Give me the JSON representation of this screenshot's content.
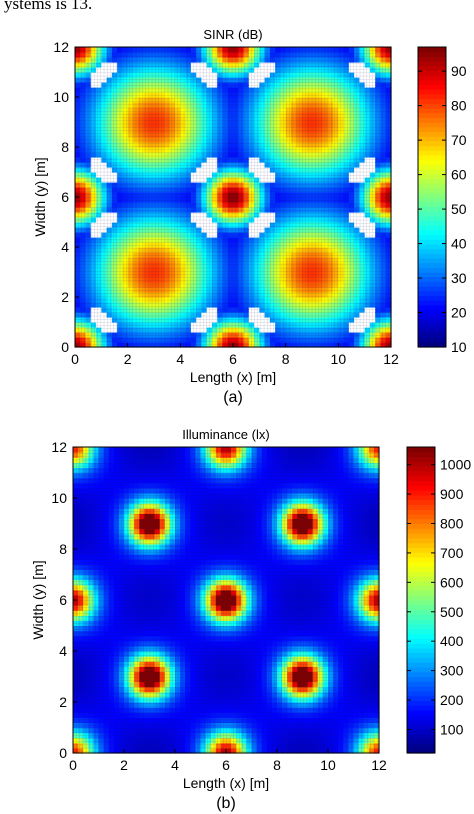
{
  "caption_top": "ystems is 13.",
  "chart_data": [
    {
      "type": "heatmap",
      "panel_label": "(a)",
      "title": "SINR (dB)",
      "xlabel": "Length (x) [m]",
      "ylabel": "Width (y) [m]",
      "xlim": [
        0,
        12
      ],
      "ylim": [
        0,
        12
      ],
      "x_ticks": [
        "0",
        "2",
        "4",
        "6",
        "8",
        "10",
        "12"
      ],
      "y_ticks": [
        "0",
        "2",
        "4",
        "6",
        "8",
        "10",
        "12"
      ],
      "colorbar": {
        "min": 10,
        "max": 97,
        "ticks": [
          "10",
          "20",
          "30",
          "40",
          "50",
          "60",
          "70",
          "80",
          "90"
        ]
      },
      "colormap": "jet",
      "mesh_grid": true,
      "peak_value": 97,
      "peaks": [
        {
          "x": 3,
          "y": 3,
          "value": 82
        },
        {
          "x": 9,
          "y": 3,
          "value": 82
        },
        {
          "x": 3,
          "y": 9,
          "value": 82
        },
        {
          "x": 9,
          "y": 9,
          "value": 82
        },
        {
          "x": 6,
          "y": 6,
          "value": 97
        },
        {
          "x": 0,
          "y": 6,
          "value": 95
        },
        {
          "x": 12,
          "y": 6,
          "value": 95
        },
        {
          "x": 6,
          "y": 0,
          "value": 95
        },
        {
          "x": 6,
          "y": 12,
          "value": 95
        },
        {
          "x": 0,
          "y": 0,
          "value": 95
        },
        {
          "x": 12,
          "y": 0,
          "value": 95
        },
        {
          "x": 0,
          "y": 12,
          "value": 95
        },
        {
          "x": 12,
          "y": 12,
          "value": 95
        }
      ]
    },
    {
      "type": "heatmap",
      "panel_label": "(b)",
      "title": "Illuminance (lx)",
      "xlabel": "Length (x) [m]",
      "ylabel": "Width (y) [m]",
      "xlim": [
        0,
        12
      ],
      "ylim": [
        0,
        12
      ],
      "x_ticks": [
        "0",
        "2",
        "4",
        "6",
        "8",
        "10",
        "12"
      ],
      "y_ticks": [
        "0",
        "2",
        "4",
        "6",
        "8",
        "10",
        "12"
      ],
      "colorbar": {
        "min": 20,
        "max": 1060,
        "ticks": [
          "100",
          "200",
          "300",
          "400",
          "500",
          "600",
          "700",
          "800",
          "900",
          "1000"
        ]
      },
      "colormap": "jet",
      "mesh_grid": true,
      "background_value": 30,
      "sources": [
        {
          "x": 3,
          "y": 3,
          "peak": 1000
        },
        {
          "x": 9,
          "y": 3,
          "peak": 1000
        },
        {
          "x": 3,
          "y": 9,
          "peak": 1000
        },
        {
          "x": 9,
          "y": 9,
          "peak": 1000
        },
        {
          "x": 6,
          "y": 6,
          "peak": 1000
        },
        {
          "x": 0,
          "y": 6,
          "peak": 800
        },
        {
          "x": 12,
          "y": 6,
          "peak": 800
        },
        {
          "x": 6,
          "y": 0,
          "peak": 800
        },
        {
          "x": 6,
          "y": 12,
          "peak": 800
        },
        {
          "x": 0,
          "y": 0,
          "peak": 700
        },
        {
          "x": 12,
          "y": 0,
          "peak": 700
        },
        {
          "x": 0,
          "y": 12,
          "peak": 700
        },
        {
          "x": 12,
          "y": 12,
          "peak": 700
        }
      ]
    }
  ]
}
